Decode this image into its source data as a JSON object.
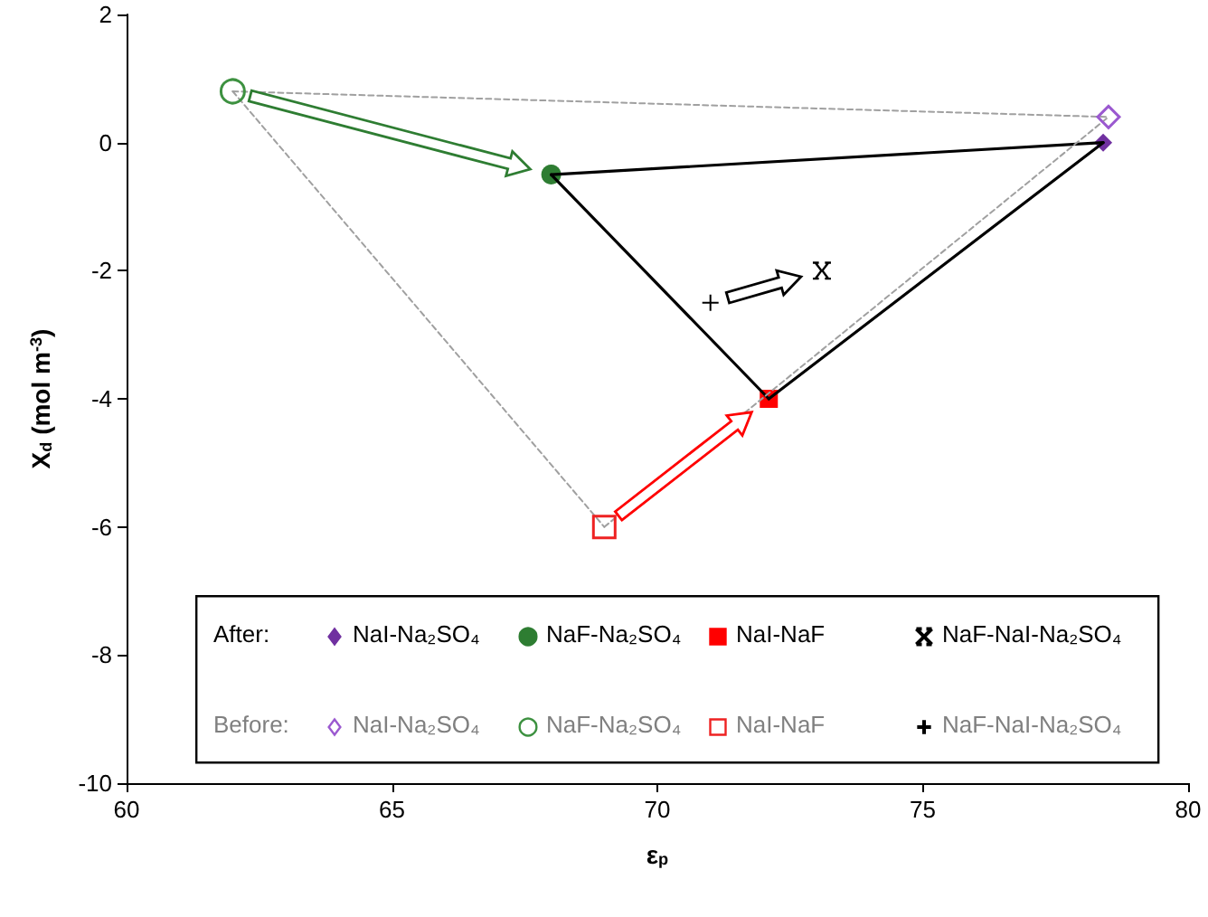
{
  "chart_data": {
    "type": "scatter",
    "xlabel": "ε$_{p}$",
    "ylabel": "X$_{d}$ (mol m$^{-3}$)",
    "xlim": [
      60,
      80
    ],
    "xticks": [
      60,
      65,
      70,
      75,
      80
    ],
    "ylim": [
      -10,
      2
    ],
    "yticks": [
      -10,
      -8,
      -6,
      -4,
      -2,
      0,
      2
    ],
    "grid": false,
    "legend": "bottom",
    "annotations": [
      "After:",
      "Before:"
    ],
    "series": [
      {
        "name": "NaI-Na₂SO₄",
        "color": "#7030a0",
        "marker": "diamond",
        "x": [
          78.4
        ],
        "values": [
          0
        ]
      },
      {
        "name": "NaF-Na₂SO₄",
        "color": "#2e7d32",
        "marker": "circle",
        "x": [
          68
        ],
        "values": [
          -0.5
        ]
      },
      {
        "name": "NaI-NaF",
        "color": "#ff0000",
        "marker": "square",
        "x": [
          72.1
        ],
        "values": [
          -4
        ]
      },
      {
        "name": "NaF-NaI-Na₂SO₄",
        "color": "#000000",
        "marker": "star",
        "x": [
          73.1
        ],
        "values": [
          -2
        ]
      },
      {
        "name": "NaI-Na₂SO₄",
        "color": "#9b59d0",
        "marker": "diamond",
        "x": [
          78.5
        ],
        "values": [
          0.4
        ]
      },
      {
        "name": "NaF-Na₂SO₄",
        "color": "#3d9140",
        "marker": "circle",
        "x": [
          62
        ],
        "values": [
          0.8
        ]
      },
      {
        "name": "NaI-NaF",
        "color": "#ee2222",
        "marker": "square",
        "x": [
          69
        ],
        "values": [
          -6
        ]
      },
      {
        "name": "NaF-NaI-Na₂SO₄",
        "color": "#000000",
        "marker": "cross",
        "x": [
          71
        ],
        "values": [
          -2.5
        ]
      },
      {
        "type": "line",
        "color": "#000000",
        "line_style": "solid",
        "x": [
          68,
          78.4
        ],
        "values": [
          -0.5,
          0
        ]
      },
      {
        "type": "line",
        "color": "#000000",
        "line_style": "solid",
        "x": [
          72.1,
          78.4
        ],
        "values": [
          -4,
          0
        ]
      },
      {
        "type": "line",
        "color": "#000000",
        "line_style": "solid",
        "x": [
          68,
          72.1
        ],
        "values": [
          -0.5,
          -4
        ]
      },
      {
        "type": "line",
        "color": "#a0a0a0",
        "line_style": "dashed",
        "x": [
          62,
          78.5
        ],
        "values": [
          0.8,
          0.4
        ]
      },
      {
        "type": "line",
        "color": "#a0a0a0",
        "line_style": "dashed",
        "x": [
          69,
          78.5
        ],
        "values": [
          -6,
          0.4
        ]
      },
      {
        "type": "line",
        "color": "#a0a0a0",
        "line_style": "dashed",
        "x": [
          62,
          69
        ],
        "values": [
          0.8,
          -6
        ]
      }
    ]
  }
}
